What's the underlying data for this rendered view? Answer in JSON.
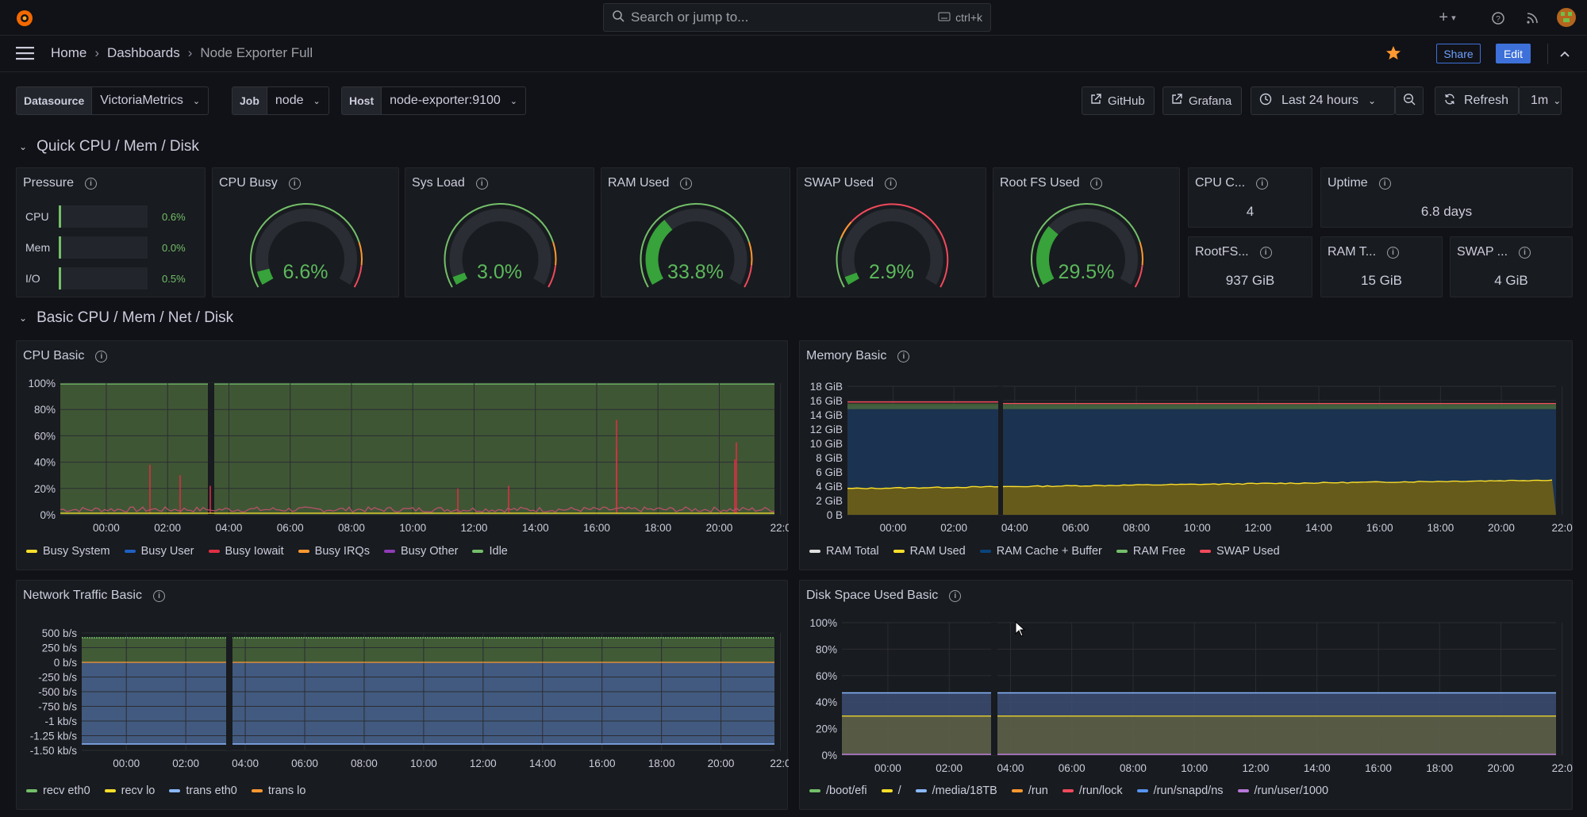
{
  "topbar": {
    "search_placeholder": "Search or jump to...",
    "search_shortcut": "ctrl+k"
  },
  "breadcrumb": {
    "home": "Home",
    "dashboards": "Dashboards",
    "current": "Node Exporter Full"
  },
  "nav_buttons": {
    "share": "Share",
    "edit": "Edit"
  },
  "variables": {
    "datasource_label": "Datasource",
    "datasource_value": "VictoriaMetrics",
    "job_label": "Job",
    "job_value": "node",
    "host_label": "Host",
    "host_value": "node-exporter:9100"
  },
  "toolbar": {
    "github": "GitHub",
    "grafana": "Grafana",
    "time_range": "Last 24 hours",
    "refresh": "Refresh",
    "refresh_interval": "1m"
  },
  "rows": {
    "quick": "Quick CPU / Mem / Disk",
    "basic": "Basic CPU / Mem / Net / Disk"
  },
  "pressure": {
    "title": "Pressure",
    "items": [
      {
        "label": "CPU",
        "value": "0.6%"
      },
      {
        "label": "Mem",
        "value": "0.0%"
      },
      {
        "label": "I/O",
        "value": "0.5%"
      }
    ]
  },
  "gauges": [
    {
      "title": "CPU Busy",
      "value": "6.6%",
      "pct": 6.6,
      "thresholds": "green"
    },
    {
      "title": "Sys Load",
      "value": "3.0%",
      "pct": 3.0,
      "thresholds": "green"
    },
    {
      "title": "RAM Used",
      "value": "33.8%",
      "pct": 33.8,
      "thresholds": "green"
    },
    {
      "title": "SWAP Used",
      "value": "2.9%",
      "pct": 2.9,
      "thresholds": "red"
    },
    {
      "title": "Root FS Used",
      "value": "29.5%",
      "pct": 29.5,
      "thresholds": "green"
    }
  ],
  "stats": {
    "cpu_cores": {
      "title": "CPU C...",
      "value": "4"
    },
    "uptime": {
      "title": "Uptime",
      "value": "6.8 days"
    },
    "rootfs": {
      "title": "RootFS...",
      "value": "937 GiB"
    },
    "ram_total": {
      "title": "RAM T...",
      "value": "15 GiB"
    },
    "swap_total": {
      "title": "SWAP ...",
      "value": "4 GiB"
    }
  },
  "chart_data": [
    {
      "name": "CPU Basic",
      "type": "area",
      "title": "CPU Basic",
      "x": [
        "00:00",
        "02:00",
        "04:00",
        "06:00",
        "08:00",
        "10:00",
        "12:00",
        "14:00",
        "16:00",
        "18:00",
        "20:00",
        "22:0"
      ],
      "y_ticks": [
        "100%",
        "80%",
        "60%",
        "40%",
        "20%",
        "0%"
      ],
      "ylim": [
        0,
        100
      ],
      "series": [
        {
          "name": "Busy System",
          "color": "#fade2a"
        },
        {
          "name": "Busy User",
          "color": "#1f60c4"
        },
        {
          "name": "Busy Iowait",
          "color": "#e02f44"
        },
        {
          "name": "Busy IRQs",
          "color": "#ff9830"
        },
        {
          "name": "Busy Other",
          "color": "#8f3bb8"
        },
        {
          "name": "Idle",
          "color": "#73bf69"
        }
      ]
    },
    {
      "name": "Memory Basic",
      "type": "area",
      "title": "Memory Basic",
      "x": [
        "00:00",
        "02:00",
        "04:00",
        "06:00",
        "08:00",
        "10:00",
        "12:00",
        "14:00",
        "16:00",
        "18:00",
        "20:00",
        "22:0"
      ],
      "y_ticks": [
        "18 GiB",
        "16 GiB",
        "14 GiB",
        "12 GiB",
        "10 GiB",
        "8 GiB",
        "6 GiB",
        "4 GiB",
        "2 GiB",
        "0 B"
      ],
      "ylim": [
        0,
        18
      ],
      "series": [
        {
          "name": "RAM Total",
          "color": "#e0e0e0"
        },
        {
          "name": "RAM Used",
          "color": "#fade2a"
        },
        {
          "name": "RAM Cache + Buffer",
          "color": "#0a437c"
        },
        {
          "name": "RAM Free",
          "color": "#73bf69"
        },
        {
          "name": "SWAP Used",
          "color": "#f2495c"
        }
      ]
    },
    {
      "name": "Network Traffic Basic",
      "type": "area",
      "title": "Network Traffic Basic",
      "x": [
        "00:00",
        "02:00",
        "04:00",
        "06:00",
        "08:00",
        "10:00",
        "12:00",
        "14:00",
        "16:00",
        "18:00",
        "20:00",
        "22:0"
      ],
      "y_ticks": [
        "500 b/s",
        "250 b/s",
        "0 b/s",
        "-250 b/s",
        "-500 b/s",
        "-750 b/s",
        "-1 kb/s",
        "-1.25 kb/s",
        "-1.50 kb/s"
      ],
      "series": [
        {
          "name": "recv eth0",
          "color": "#73bf69"
        },
        {
          "name": "recv lo",
          "color": "#fade2a"
        },
        {
          "name": "trans eth0",
          "color": "#8ab8ff"
        },
        {
          "name": "trans lo",
          "color": "#ff9830"
        }
      ]
    },
    {
      "name": "Disk Space Used Basic",
      "type": "area",
      "title": "Disk Space Used Basic",
      "x": [
        "00:00",
        "02:00",
        "04:00",
        "06:00",
        "08:00",
        "10:00",
        "12:00",
        "14:00",
        "16:00",
        "18:00",
        "20:00",
        "22:0"
      ],
      "y_ticks": [
        "100%",
        "80%",
        "60%",
        "40%",
        "20%",
        "0%"
      ],
      "ylim": [
        0,
        100
      ],
      "series": [
        {
          "name": "/boot/efi",
          "color": "#73bf69"
        },
        {
          "name": "/",
          "color": "#fade2a"
        },
        {
          "name": "/media/18TB",
          "color": "#8ab8ff"
        },
        {
          "name": "/run",
          "color": "#ff9830"
        },
        {
          "name": "/run/lock",
          "color": "#f2495c"
        },
        {
          "name": "/run/snapd/ns",
          "color": "#5794f2"
        },
        {
          "name": "/run/user/1000",
          "color": "#b877d9"
        }
      ]
    }
  ]
}
